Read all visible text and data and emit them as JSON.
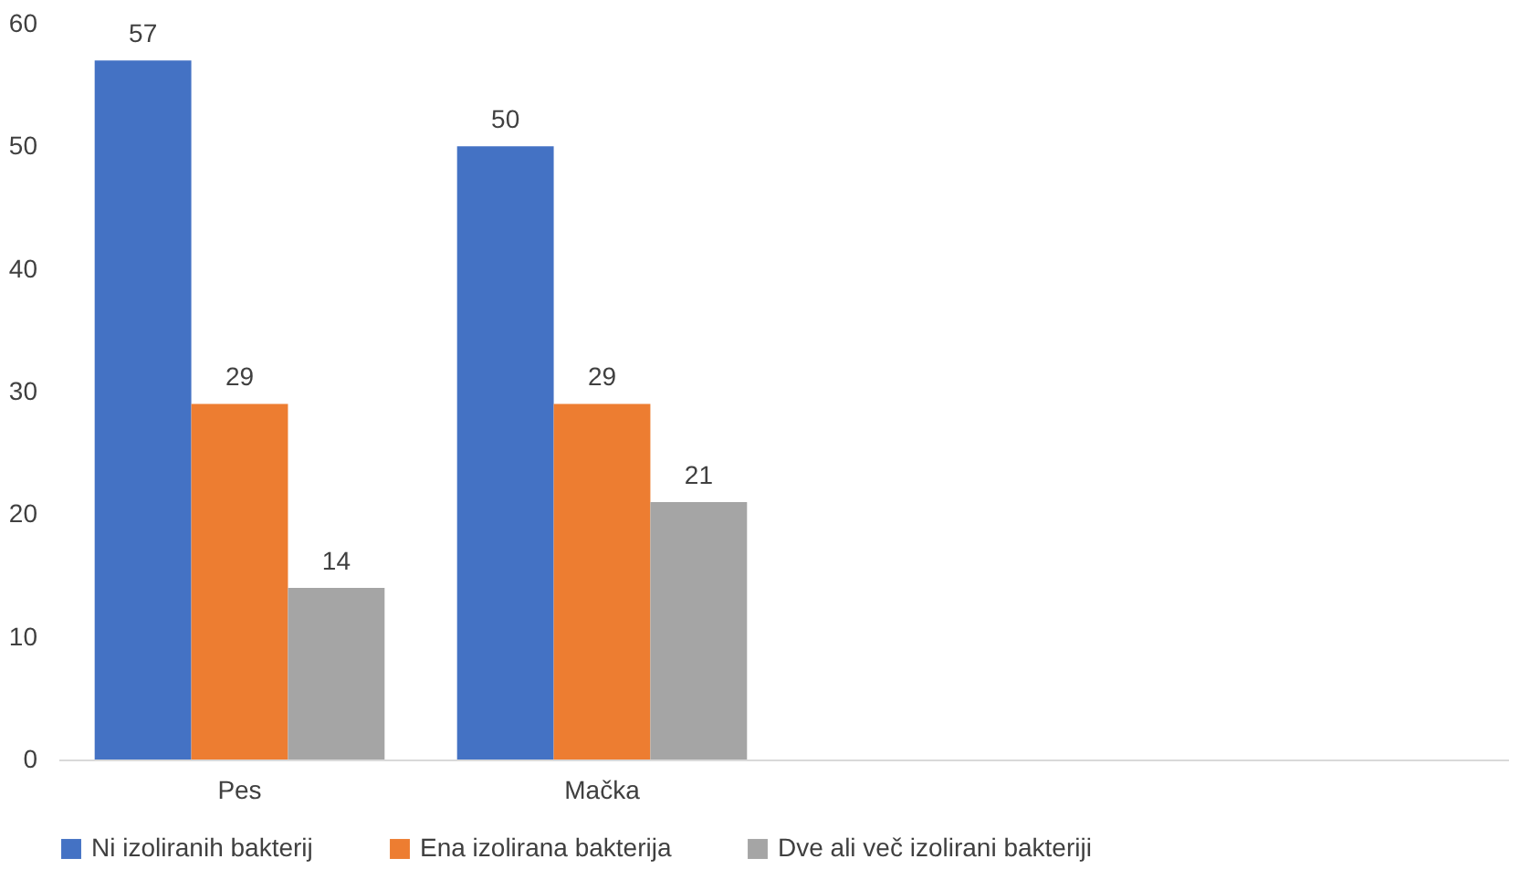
{
  "chart_data": {
    "type": "bar",
    "categories": [
      "Pes",
      "Mačka",
      null,
      null
    ],
    "series": [
      {
        "name": "Ni izoliranih bakterij",
        "color": "#4472c4",
        "values": [
          57,
          50,
          null,
          null
        ]
      },
      {
        "name": "Ena izolirana bakterija",
        "color": "#ed7d31",
        "values": [
          29,
          29,
          null,
          null
        ]
      },
      {
        "name": "Dve ali več izolirani bakteriji",
        "color": "#a5a5a5",
        "values": [
          14,
          21,
          null,
          null
        ]
      }
    ],
    "ylim": [
      0,
      60
    ],
    "yticks": [
      0,
      10,
      20,
      30,
      40,
      50,
      60
    ],
    "data_labels": true,
    "grid": false,
    "legend": "bottom"
  }
}
